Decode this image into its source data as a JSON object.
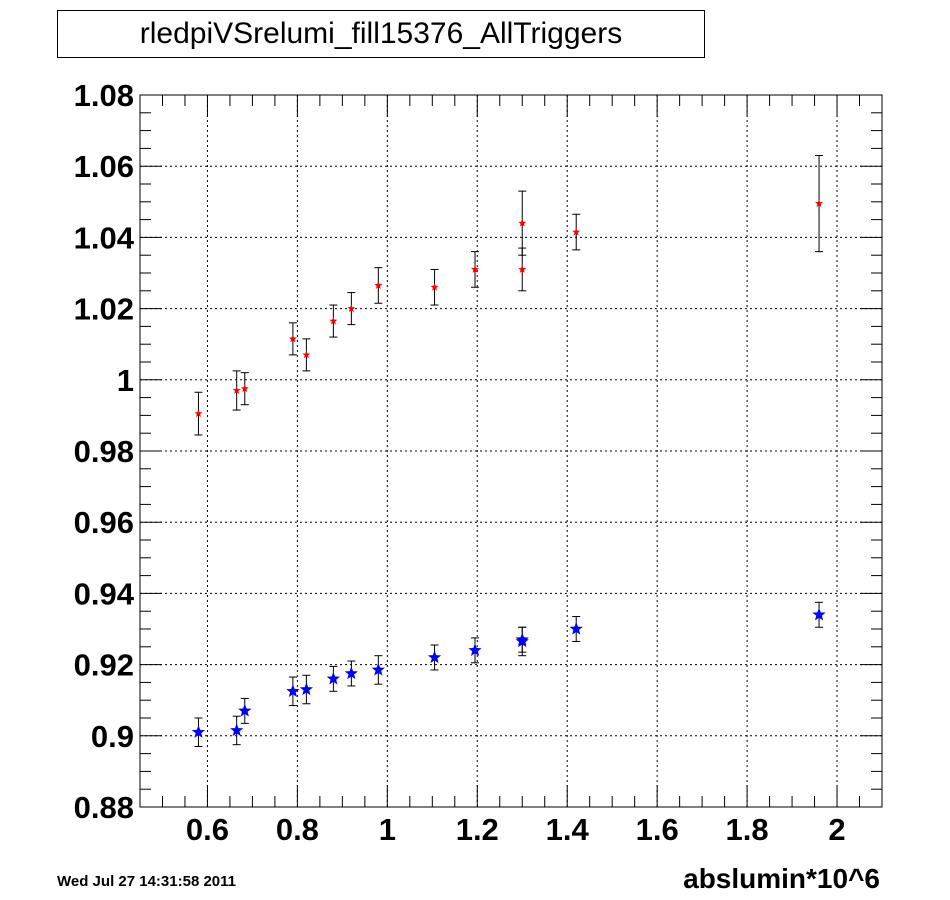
{
  "title": "rledpiVSrelumi_fill15376_AllTriggers",
  "timestamp": "Wed Jul 27 14:31:58 2011",
  "chart_data": {
    "type": "scatter",
    "title": "rledpiVSrelumi_fill15376_AllTriggers",
    "xlabel": "abslumin*10^6",
    "ylabel": "",
    "xlim": [
      0.45,
      2.1
    ],
    "ylim": [
      0.88,
      1.08
    ],
    "x_ticks": [
      "0.6",
      "0.8",
      "1",
      "1.2",
      "1.4",
      "1.6",
      "1.8",
      "2"
    ],
    "y_ticks": [
      "0.88",
      "0.9",
      "0.92",
      "0.94",
      "0.96",
      "0.98",
      "1",
      "1.02",
      "1.04",
      "1.06",
      "1.08"
    ],
    "grid": true,
    "series": [
      {
        "color": "#ff0000",
        "marker": "star-small",
        "points": [
          {
            "x": 0.58,
            "y": 0.9905,
            "err": 0.006
          },
          {
            "x": 0.665,
            "y": 0.997,
            "err": 0.0055
          },
          {
            "x": 0.683,
            "y": 0.9975,
            "err": 0.0045
          },
          {
            "x": 0.79,
            "y": 1.0115,
            "err": 0.0045
          },
          {
            "x": 0.82,
            "y": 1.007,
            "err": 0.0045
          },
          {
            "x": 0.88,
            "y": 1.0165,
            "err": 0.0045
          },
          {
            "x": 0.92,
            "y": 1.02,
            "err": 0.0045
          },
          {
            "x": 0.98,
            "y": 1.0265,
            "err": 0.005
          },
          {
            "x": 1.105,
            "y": 1.026,
            "err": 0.005
          },
          {
            "x": 1.195,
            "y": 1.031,
            "err": 0.005
          },
          {
            "x": 1.3,
            "y": 1.031,
            "err": 0.006
          },
          {
            "x": 1.3,
            "y": 1.044,
            "err": 0.009
          },
          {
            "x": 1.42,
            "y": 1.0415,
            "err": 0.005
          },
          {
            "x": 1.96,
            "y": 1.0495,
            "err": 0.0135
          }
        ]
      },
      {
        "color": "#0000ff",
        "marker": "star-large",
        "points": [
          {
            "x": 0.58,
            "y": 0.901,
            "err": 0.004
          },
          {
            "x": 0.665,
            "y": 0.9015,
            "err": 0.004
          },
          {
            "x": 0.683,
            "y": 0.907,
            "err": 0.0035
          },
          {
            "x": 0.79,
            "y": 0.9125,
            "err": 0.004
          },
          {
            "x": 0.82,
            "y": 0.913,
            "err": 0.004
          },
          {
            "x": 0.88,
            "y": 0.916,
            "err": 0.0035
          },
          {
            "x": 0.92,
            "y": 0.9175,
            "err": 0.0035
          },
          {
            "x": 0.98,
            "y": 0.9185,
            "err": 0.004
          },
          {
            "x": 1.105,
            "y": 0.922,
            "err": 0.0035
          },
          {
            "x": 1.195,
            "y": 0.924,
            "err": 0.0035
          },
          {
            "x": 1.3,
            "y": 0.9265,
            "err": 0.004
          },
          {
            "x": 1.3,
            "y": 0.927,
            "err": 0.0035
          },
          {
            "x": 1.42,
            "y": 0.93,
            "err": 0.0035
          },
          {
            "x": 1.96,
            "y": 0.934,
            "err": 0.0035
          }
        ]
      }
    ]
  }
}
